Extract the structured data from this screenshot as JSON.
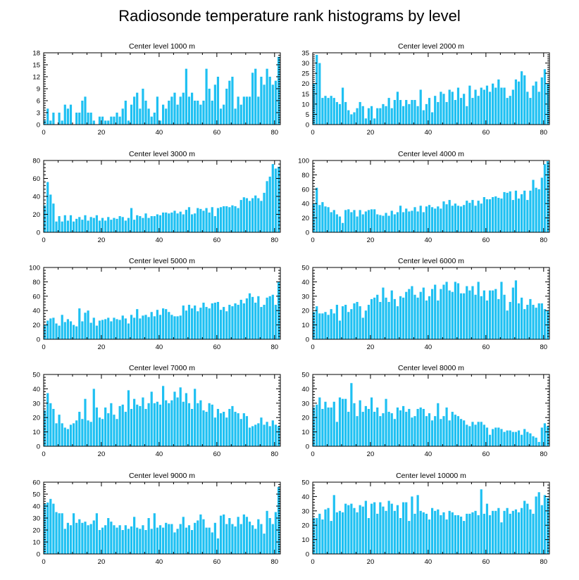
{
  "title": "Radiosonde temperature rank histograms by level",
  "colors": {
    "bar": "#1ec0f2",
    "axis": "#000000",
    "background": "#ffffff"
  },
  "chart_data": [
    {
      "type": "bar",
      "title": "Center level 1000 m",
      "xlim": [
        0,
        82
      ],
      "ylim": [
        0,
        18
      ],
      "xticks": [
        0,
        20,
        40,
        60,
        80
      ],
      "yticks": [
        0,
        3,
        6,
        9,
        12,
        15,
        18
      ],
      "values": [
        1,
        4,
        1,
        3,
        0,
        3,
        1,
        5,
        4,
        5,
        0,
        3,
        3,
        6,
        7,
        3,
        3,
        1,
        0,
        2,
        2,
        1,
        1,
        2,
        2,
        3,
        2,
        4,
        6,
        1,
        5,
        7,
        8,
        4,
        9,
        6,
        4,
        2,
        3,
        7,
        1,
        5,
        4,
        6,
        7,
        8,
        5,
        7,
        8,
        14,
        7,
        8,
        6,
        6,
        5,
        6,
        14,
        9,
        6,
        10,
        12,
        4,
        5,
        9,
        11,
        12,
        4,
        7,
        5,
        7,
        7,
        7,
        13,
        14,
        7,
        12,
        10,
        14,
        12,
        10,
        11,
        17
      ]
    },
    {
      "type": "bar",
      "title": "Center level 2000 m",
      "xlim": [
        0,
        82
      ],
      "ylim": [
        0,
        35
      ],
      "xticks": [
        0,
        20,
        40,
        60,
        80
      ],
      "yticks": [
        0,
        5,
        10,
        15,
        20,
        25,
        30,
        35
      ],
      "values": [
        20,
        34,
        30,
        13,
        14,
        13,
        14,
        13,
        11,
        10,
        18,
        11,
        7,
        5,
        6,
        8,
        11,
        9,
        3,
        8,
        9,
        3,
        8,
        8,
        10,
        9,
        13,
        8,
        12,
        16,
        12,
        9,
        12,
        10,
        12,
        12,
        9,
        17,
        7,
        10,
        13,
        6,
        14,
        11,
        16,
        15,
        11,
        17,
        16,
        12,
        18,
        13,
        15,
        9,
        19,
        13,
        17,
        14,
        18,
        17,
        19,
        16,
        20,
        18,
        22,
        18,
        18,
        13,
        14,
        17,
        22,
        21,
        26,
        24,
        16,
        13,
        19,
        21,
        16,
        23,
        27,
        20
      ]
    },
    {
      "type": "bar",
      "title": "Center level 3000 m",
      "xlim": [
        0,
        82
      ],
      "ylim": [
        0,
        80
      ],
      "xticks": [
        0,
        20,
        40,
        60,
        80
      ],
      "yticks": [
        0,
        20,
        40,
        60,
        80
      ],
      "values": [
        30,
        56,
        42,
        32,
        12,
        18,
        12,
        19,
        13,
        19,
        12,
        15,
        17,
        14,
        19,
        13,
        17,
        16,
        19,
        13,
        16,
        13,
        17,
        14,
        16,
        15,
        18,
        17,
        13,
        16,
        27,
        14,
        19,
        18,
        16,
        21,
        16,
        18,
        18,
        20,
        19,
        22,
        22,
        21,
        22,
        24,
        21,
        23,
        20,
        25,
        28,
        20,
        21,
        27,
        26,
        24,
        27,
        22,
        28,
        18,
        27,
        28,
        29,
        29,
        28,
        30,
        29,
        27,
        36,
        39,
        38,
        35,
        38,
        41,
        38,
        35,
        44,
        57,
        62,
        76,
        71,
        73
      ]
    },
    {
      "type": "bar",
      "title": "Center level 4000 m",
      "xlim": [
        0,
        82
      ],
      "ylim": [
        0,
        100
      ],
      "xticks": [
        0,
        20,
        40,
        60,
        80
      ],
      "yticks": [
        0,
        20,
        40,
        60,
        80,
        100
      ],
      "values": [
        40,
        62,
        38,
        42,
        36,
        35,
        28,
        31,
        25,
        22,
        13,
        31,
        32,
        28,
        31,
        22,
        31,
        25,
        29,
        31,
        32,
        32,
        25,
        24,
        23,
        27,
        23,
        30,
        25,
        28,
        37,
        28,
        33,
        29,
        30,
        35,
        29,
        37,
        28,
        36,
        38,
        35,
        33,
        36,
        33,
        43,
        39,
        45,
        37,
        40,
        37,
        36,
        38,
        44,
        41,
        45,
        37,
        44,
        40,
        49,
        46,
        46,
        49,
        50,
        48,
        47,
        56,
        55,
        57,
        45,
        58,
        47,
        53,
        58,
        45,
        58,
        73,
        62,
        60,
        76,
        95,
        99
      ]
    },
    {
      "type": "bar",
      "title": "Center level 5000 m",
      "xlim": [
        0,
        82
      ],
      "ylim": [
        0,
        100
      ],
      "xticks": [
        0,
        20,
        40,
        60,
        80
      ],
      "yticks": [
        0,
        20,
        40,
        60,
        80,
        100
      ],
      "values": [
        20,
        26,
        29,
        30,
        22,
        19,
        34,
        24,
        28,
        25,
        20,
        18,
        43,
        25,
        37,
        40,
        23,
        30,
        19,
        26,
        27,
        28,
        30,
        25,
        30,
        28,
        27,
        33,
        29,
        22,
        34,
        30,
        42,
        29,
        33,
        34,
        31,
        38,
        32,
        41,
        34,
        43,
        42,
        38,
        34,
        32,
        32,
        33,
        47,
        40,
        48,
        43,
        47,
        39,
        44,
        51,
        45,
        43,
        50,
        51,
        52,
        41,
        45,
        39,
        48,
        46,
        50,
        48,
        55,
        50,
        57,
        64,
        59,
        51,
        60,
        45,
        48,
        58,
        60,
        62,
        48,
        80
      ]
    },
    {
      "type": "bar",
      "title": "Center level 6000 m",
      "xlim": [
        0,
        82
      ],
      "ylim": [
        0,
        50
      ],
      "xticks": [
        0,
        20,
        40,
        60,
        80
      ],
      "yticks": [
        0,
        10,
        20,
        30,
        40,
        50
      ],
      "values": [
        19,
        23,
        18,
        18,
        19,
        17,
        21,
        18,
        24,
        13,
        23,
        24,
        19,
        21,
        25,
        26,
        23,
        15,
        20,
        24,
        28,
        29,
        31,
        26,
        36,
        29,
        26,
        34,
        28,
        23,
        30,
        29,
        33,
        35,
        37,
        31,
        29,
        33,
        36,
        27,
        30,
        35,
        38,
        27,
        35,
        38,
        40,
        34,
        33,
        40,
        39,
        32,
        32,
        37,
        34,
        37,
        31,
        40,
        30,
        34,
        27,
        34,
        34,
        35,
        28,
        40,
        31,
        20,
        26,
        36,
        41,
        25,
        29,
        21,
        24,
        28,
        24,
        22,
        25,
        25,
        21,
        20
      ]
    },
    {
      "type": "bar",
      "title": "Center level 7000 m",
      "xlim": [
        0,
        82
      ],
      "ylim": [
        0,
        50
      ],
      "xticks": [
        0,
        20,
        40,
        60,
        80
      ],
      "yticks": [
        0,
        10,
        20,
        30,
        40,
        50
      ],
      "values": [
        25,
        37,
        30,
        26,
        16,
        22,
        16,
        13,
        12,
        15,
        16,
        18,
        24,
        19,
        33,
        18,
        17,
        40,
        27,
        20,
        19,
        27,
        23,
        30,
        22,
        19,
        28,
        29,
        24,
        39,
        26,
        33,
        29,
        28,
        34,
        26,
        30,
        38,
        30,
        31,
        29,
        42,
        32,
        30,
        32,
        38,
        34,
        41,
        31,
        37,
        30,
        26,
        40,
        30,
        32,
        25,
        24,
        30,
        29,
        20,
        26,
        23,
        24,
        20,
        26,
        28,
        24,
        23,
        19,
        23,
        21,
        13,
        14,
        15,
        16,
        20,
        15,
        17,
        14,
        18,
        15,
        14
      ]
    },
    {
      "type": "bar",
      "title": "Center level 8000 m",
      "xlim": [
        0,
        82
      ],
      "ylim": [
        0,
        50
      ],
      "xticks": [
        0,
        20,
        40,
        60,
        80
      ],
      "yticks": [
        0,
        10,
        20,
        30,
        40,
        50
      ],
      "values": [
        27,
        29,
        34,
        26,
        31,
        27,
        27,
        31,
        17,
        34,
        33,
        33,
        24,
        44,
        30,
        21,
        32,
        24,
        28,
        26,
        34,
        24,
        27,
        21,
        23,
        33,
        24,
        23,
        19,
        27,
        25,
        28,
        24,
        26,
        20,
        21,
        26,
        27,
        26,
        21,
        23,
        18,
        21,
        30,
        19,
        21,
        27,
        18,
        24,
        22,
        21,
        19,
        18,
        15,
        14,
        17,
        15,
        17,
        17,
        15,
        13,
        8,
        12,
        13,
        13,
        12,
        10,
        11,
        11,
        10,
        10,
        11,
        8,
        12,
        10,
        9,
        7,
        6,
        3,
        13,
        16,
        14
      ]
    },
    {
      "type": "bar",
      "title": "Center level 9000 m",
      "xlim": [
        0,
        82
      ],
      "ylim": [
        0,
        60
      ],
      "xticks": [
        0,
        20,
        40,
        60,
        80
      ],
      "yticks": [
        0,
        10,
        20,
        30,
        40,
        50,
        60
      ],
      "values": [
        42,
        43,
        46,
        42,
        35,
        34,
        34,
        21,
        26,
        24,
        34,
        26,
        29,
        26,
        27,
        24,
        25,
        28,
        34,
        20,
        22,
        24,
        30,
        27,
        24,
        22,
        24,
        20,
        24,
        21,
        23,
        31,
        22,
        21,
        24,
        20,
        30,
        21,
        34,
        22,
        24,
        22,
        26,
        25,
        25,
        18,
        21,
        25,
        31,
        22,
        24,
        20,
        26,
        28,
        33,
        29,
        22,
        22,
        18,
        26,
        13,
        32,
        33,
        25,
        30,
        25,
        23,
        31,
        25,
        33,
        31,
        27,
        24,
        21,
        29,
        25,
        17,
        36,
        30,
        25,
        35,
        56
      ]
    },
    {
      "type": "bar",
      "title": "Center level 10000 m",
      "xlim": [
        0,
        82
      ],
      "ylim": [
        0,
        50
      ],
      "xticks": [
        0,
        20,
        40,
        60,
        80
      ],
      "yticks": [
        0,
        10,
        20,
        30,
        40,
        50
      ],
      "values": [
        25,
        25,
        28,
        24,
        31,
        32,
        23,
        41,
        29,
        30,
        29,
        35,
        34,
        35,
        32,
        29,
        34,
        33,
        37,
        25,
        35,
        36,
        28,
        36,
        33,
        30,
        37,
        35,
        30,
        34,
        25,
        36,
        36,
        23,
        40,
        28,
        41,
        30,
        29,
        28,
        24,
        32,
        30,
        31,
        27,
        29,
        24,
        30,
        29,
        27,
        27,
        26,
        23,
        28,
        28,
        29,
        30,
        27,
        45,
        28,
        35,
        27,
        30,
        30,
        32,
        22,
        30,
        32,
        28,
        30,
        31,
        29,
        32,
        37,
        35,
        31,
        28,
        40,
        43,
        34,
        41,
        39
      ]
    }
  ]
}
